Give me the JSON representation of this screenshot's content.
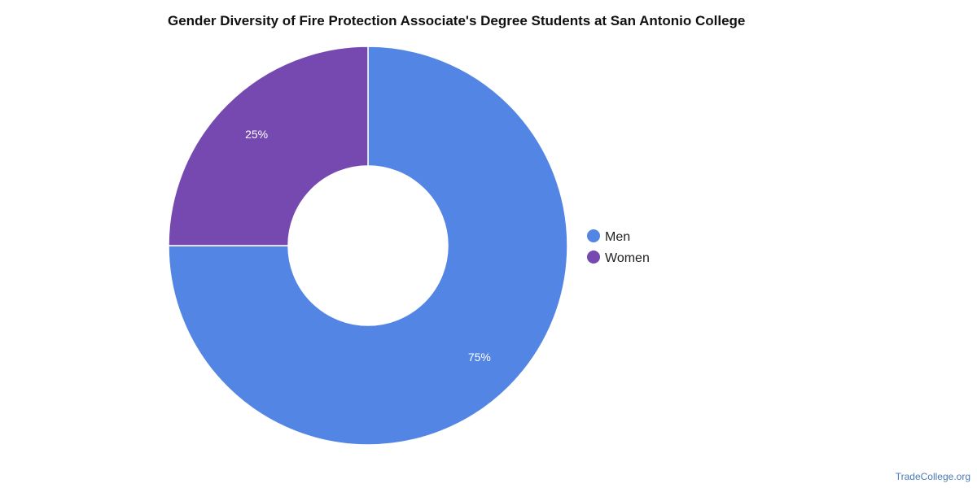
{
  "chart_data": {
    "type": "pie",
    "donut": true,
    "title": "Gender Diversity of Fire Protection Associate's Degree Students at San Antonio College",
    "categories": [
      "Men",
      "Women"
    ],
    "values": [
      75,
      25
    ],
    "labels": [
      "75%",
      "25%"
    ],
    "colors": [
      "#5386E4",
      "#7649B1"
    ],
    "legend_position": "right"
  },
  "watermark": "TradeCollege.org"
}
